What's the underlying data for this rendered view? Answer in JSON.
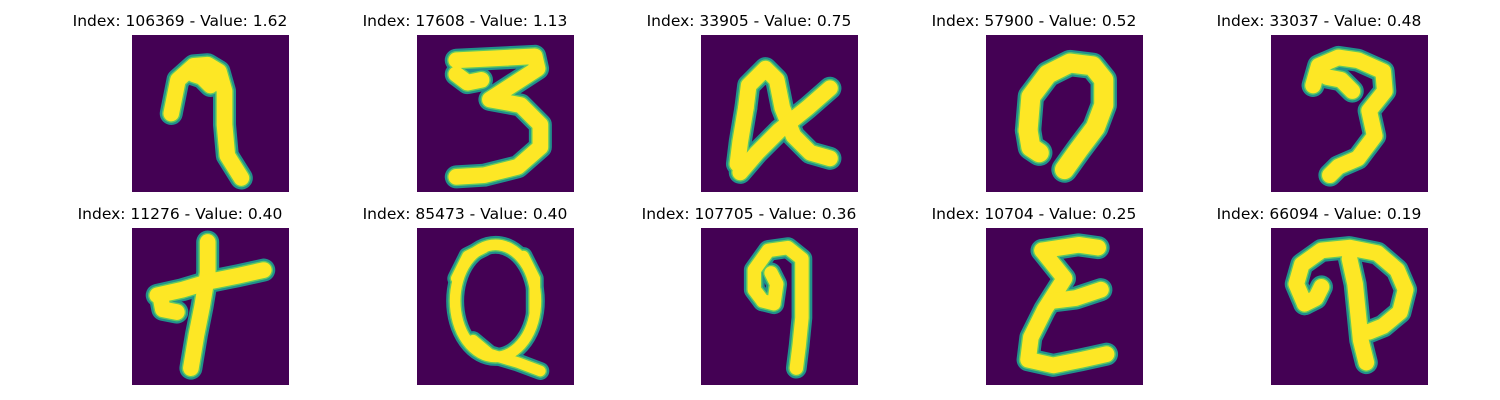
{
  "figure": {
    "panels": [
      {
        "title": "Index: 106369 - Value: 1.62",
        "index": 106369,
        "value": 1.62,
        "glyph": "7"
      },
      {
        "title": "Index: 17608 - Value: 1.13",
        "index": 17608,
        "value": 1.13,
        "glyph": "3"
      },
      {
        "title": "Index: 33905 - Value: 0.75",
        "index": 33905,
        "value": 0.75,
        "glyph": "x"
      },
      {
        "title": "Index: 57900 - Value: 0.52",
        "index": 57900,
        "value": 0.52,
        "glyph": "n"
      },
      {
        "title": "Index: 33037 - Value: 0.48",
        "index": 33037,
        "value": 0.48,
        "glyph": "J"
      },
      {
        "title": "Index: 11276 - Value: 0.40",
        "index": 11276,
        "value": 0.4,
        "glyph": "t"
      },
      {
        "title": "Index: 85473 - Value: 0.40",
        "index": 85473,
        "value": 0.4,
        "glyph": "Q"
      },
      {
        "title": "Index: 107705 - Value: 0.36",
        "index": 107705,
        "value": 0.36,
        "glyph": "q"
      },
      {
        "title": "Index: 10704 - Value: 0.25",
        "index": 10704,
        "value": 0.25,
        "glyph": "E"
      },
      {
        "title": "Index: 66094 - Value: 0.19",
        "index": 66094,
        "value": 0.19,
        "glyph": "P"
      }
    ],
    "colormap": {
      "background": "#440154",
      "edge": "#21918c",
      "mid": "#5ec962",
      "stroke": "#fde725"
    }
  }
}
